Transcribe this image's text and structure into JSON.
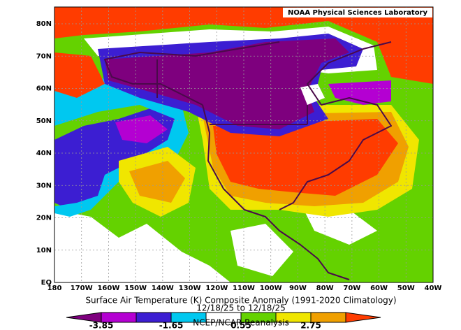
{
  "title": "Surface Air Temperature (K) Composite Anomaly (1991-2020 Climatology)",
  "date_range": "12/18/25  to 12/18/25",
  "source": "NCEP/NCAR Reanalysis",
  "credit": "NOAA Physical Sciences Laboratory",
  "lat_labels": [
    "EQ",
    "10N",
    "20N",
    "30N",
    "40N",
    "50N",
    "60N",
    "70N",
    "80N"
  ],
  "lon_labels": [
    "180",
    "170W",
    "160W",
    "150W",
    "140W",
    "130W",
    "120W",
    "110W",
    "100W",
    "90W",
    "80W",
    "70W",
    "60W",
    "50W",
    "40W"
  ],
  "colorbar": {
    "colors": [
      "#7e007e",
      "#b400d2",
      "#3c1ed2",
      "#00c8f0",
      "#ffffff",
      "#64d200",
      "#f0e600",
      "#f0a000",
      "#ff3c00"
    ],
    "labels": [
      "-3.85",
      "-1.65",
      "0.55",
      "2.75"
    ]
  }
}
